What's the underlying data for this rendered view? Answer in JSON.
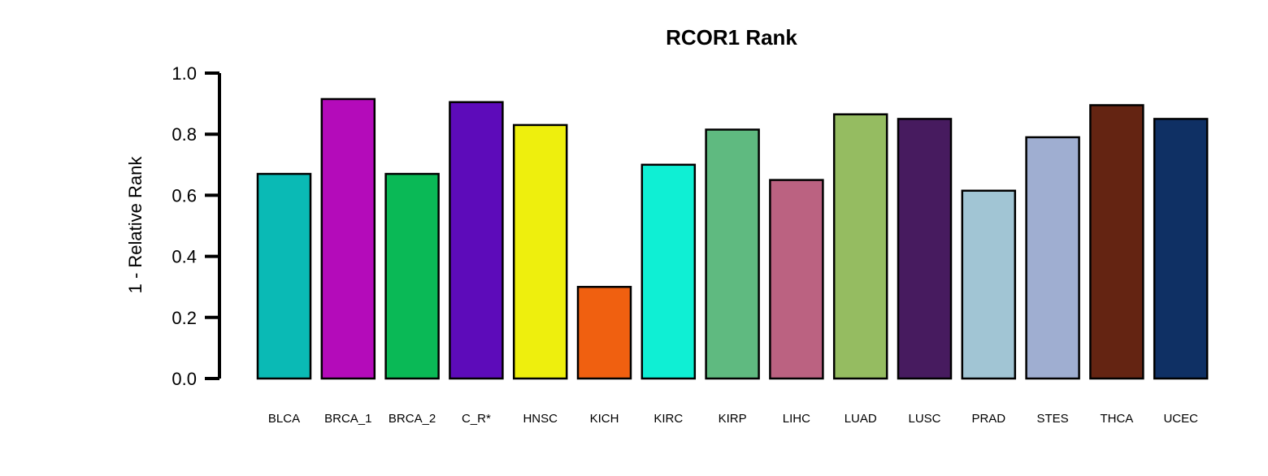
{
  "chart_data": {
    "type": "bar",
    "title": "RCOR1 Rank",
    "xlabel": "",
    "ylabel": "1 - Relative Rank",
    "ylim": [
      0,
      1
    ],
    "yticks": [
      "0.0",
      "0.2",
      "0.4",
      "0.6",
      "0.8",
      "1.0"
    ],
    "grid": false,
    "legend": "none",
    "categories": [
      "BLCA",
      "BRCA_1",
      "BRCA_2",
      "C_R*",
      "HNSC",
      "KICH",
      "KIRC",
      "KIRP",
      "LIHC",
      "LUAD",
      "LUSC",
      "PRAD",
      "STES",
      "THCA",
      "UCEC"
    ],
    "values": [
      0.67,
      0.915,
      0.67,
      0.905,
      0.83,
      0.3,
      0.7,
      0.815,
      0.65,
      0.865,
      0.85,
      0.615,
      0.79,
      0.895,
      0.85
    ],
    "colors": [
      "#0ABAB5",
      "#B40BBA",
      "#0AB956",
      "#5D0BBA",
      "#EEEF0D",
      "#F06010",
      "#0FEFD4",
      "#5FBA80",
      "#BB6281",
      "#95BC61",
      "#471B5F",
      "#A1C5D4",
      "#9FAED1",
      "#642412",
      "#0F3064"
    ]
  }
}
